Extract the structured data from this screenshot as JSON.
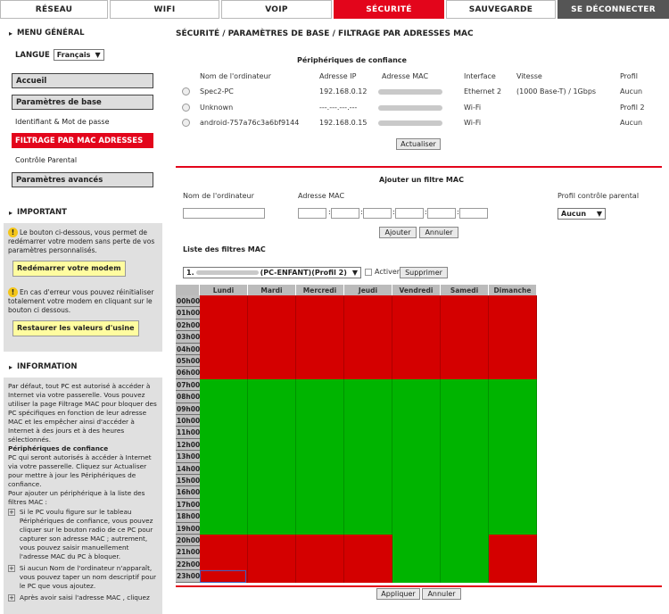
{
  "nav": {
    "tabs": [
      {
        "label": "RÉSEAU"
      },
      {
        "label": "WIFI"
      },
      {
        "label": "VOIP"
      },
      {
        "label": "SÉCURITÉ"
      },
      {
        "label": "SAUVEGARDE"
      },
      {
        "label": "SE DÉCONNECTER"
      }
    ],
    "active_index": 3
  },
  "sidebar": {
    "menu_title": "MENU GÉNÉRAL",
    "lang_label": "LANGUE",
    "lang_value": "Français",
    "items": [
      {
        "label": "Accueil"
      },
      {
        "label": "Paramètres de base"
      },
      {
        "label": "Identifiant & Mot de passe"
      },
      {
        "label": "FILTRAGE PAR MAC ADRESSES"
      },
      {
        "label": "Contrôle Parental"
      },
      {
        "label": "Paramètres avancés"
      }
    ],
    "important_title": "IMPORTANT",
    "restart_text": "Le bouton ci-dessous, vous permet de redémarrer votre modem sans perte de vos paramètres personnalisés.",
    "restart_button": "Redémarrer votre modem",
    "reset_text": "En cas d'erreur vous pouvez réinitialiser totalement votre modem en cliquant sur le bouton ci dessous.",
    "reset_button": "Restaurer les valeurs d'usine",
    "info_title": "INFORMATION",
    "info_p1": "Par défaut, tout PC est autorisé à accéder à Internet via votre passerelle. Vous pouvez utiliser la page Filtrage MAC pour bloquer des PC spécifiques en fonction de leur adresse MAC et les empêcher ainsi d'accéder à Internet à des jours et à des heures sélectionnés.",
    "info_h2": "Périphériques de confiance",
    "info_p2": "PC qui seront autorisés à accéder à Internet via votre passerelle. Cliquez sur Actualiser pour mettre à jour les Périphériques de confiance.",
    "info_p3": "Pour ajouter un périphérique à la liste des filtres MAC :",
    "info_b1": "Si le PC voulu figure sur le tableau Périphériques de confiance, vous pouvez cliquer sur le bouton radio de ce PC pour capturer son adresse MAC ; autrement, vous pouvez saisir manuellement l'adresse MAC du PC à bloquer.",
    "info_b2": "Si aucun Nom de l'ordinateur n'apparaît, vous pouvez taper un nom descriptif pour le PC que vous ajoutez.",
    "info_b3": "Après avoir saisi l'adresse MAC , cliquez"
  },
  "main": {
    "title": "SÉCURITÉ / PARAMÈTRES DE BASE / FILTRAGE PAR ADRESSES MAC",
    "trusted_title": "Périphériques de confiance",
    "trusted_cols": [
      "Nom de l'ordinateur",
      "Adresse IP",
      "Adresse MAC",
      "Interface",
      "Vitesse",
      "Profil"
    ],
    "devices": [
      {
        "name": "Spec2-PC",
        "ip": "192.168.0.12",
        "iface": "Ethernet 2",
        "speed": "(1000 Base-T) / 1Gbps",
        "profile": "Aucun"
      },
      {
        "name": "Unknown",
        "ip": "---.---.---.---",
        "iface": "Wi-Fi",
        "speed": "",
        "profile": "Profil 2"
      },
      {
        "name": "android-757a76c3a6bf9144",
        "ip": "192.168.0.15",
        "iface": "Wi-Fi",
        "speed": "",
        "profile": "Aucun"
      }
    ],
    "refresh_button": "Actualiser",
    "add_filter_title": "Ajouter un filtre MAC",
    "add_cols": [
      "Nom de l'ordinateur",
      "Adresse MAC",
      "Profil contrôle parental"
    ],
    "profile_select": "Aucun",
    "add_button": "Ajouter",
    "cancel_button": "Annuler",
    "filter_list_title": "Liste des filtres MAC",
    "filter_select": "(PC-ENFANT)(Profil 2)",
    "filter_select_prefix": "1.",
    "activate_label": "Activer",
    "delete_button": "Supprimer",
    "days": [
      "Lundi",
      "Mardi",
      "Mercredi",
      "Jeudi",
      "Vendredi",
      "Samedi",
      "Dimanche"
    ],
    "hours": [
      "00h00",
      "01h00",
      "02h00",
      "03h00",
      "04h00",
      "05h00",
      "06h00",
      "07h00",
      "08h00",
      "09h00",
      "10h00",
      "11h00",
      "12h00",
      "13h00",
      "14h00",
      "15h00",
      "16h00",
      "17h00",
      "18h00",
      "19h00",
      "20h00",
      "21h00",
      "22h00",
      "23h00"
    ],
    "schedule_note": "1 = blocked (red), 0 = allowed (green)",
    "schedule": [
      [
        1,
        1,
        1,
        1,
        1,
        1,
        1,
        0,
        0,
        0,
        0,
        0,
        0,
        0,
        0,
        0,
        0,
        0,
        0,
        0,
        1,
        1,
        1,
        1
      ],
      [
        1,
        1,
        1,
        1,
        1,
        1,
        1,
        0,
        0,
        0,
        0,
        0,
        0,
        0,
        0,
        0,
        0,
        0,
        0,
        0,
        1,
        1,
        1,
        1
      ],
      [
        1,
        1,
        1,
        1,
        1,
        1,
        1,
        0,
        0,
        0,
        0,
        0,
        0,
        0,
        0,
        0,
        0,
        0,
        0,
        0,
        1,
        1,
        1,
        1
      ],
      [
        1,
        1,
        1,
        1,
        1,
        1,
        1,
        0,
        0,
        0,
        0,
        0,
        0,
        0,
        0,
        0,
        0,
        0,
        0,
        0,
        1,
        1,
        1,
        1
      ],
      [
        1,
        1,
        1,
        1,
        1,
        1,
        1,
        0,
        0,
        0,
        0,
        0,
        0,
        0,
        0,
        0,
        0,
        0,
        0,
        0,
        0,
        0,
        0,
        0
      ],
      [
        1,
        1,
        1,
        1,
        1,
        1,
        1,
        0,
        0,
        0,
        0,
        0,
        0,
        0,
        0,
        0,
        0,
        0,
        0,
        0,
        0,
        0,
        0,
        0
      ],
      [
        1,
        1,
        1,
        1,
        1,
        1,
        1,
        0,
        0,
        0,
        0,
        0,
        0,
        0,
        0,
        0,
        0,
        0,
        0,
        0,
        1,
        1,
        1,
        1
      ]
    ],
    "apply_button": "Appliquer",
    "cancel2_button": "Annuler",
    "colors": {
      "blocked": "#d40000",
      "allowed": "#00b400",
      "accent": "#e3051b"
    }
  }
}
